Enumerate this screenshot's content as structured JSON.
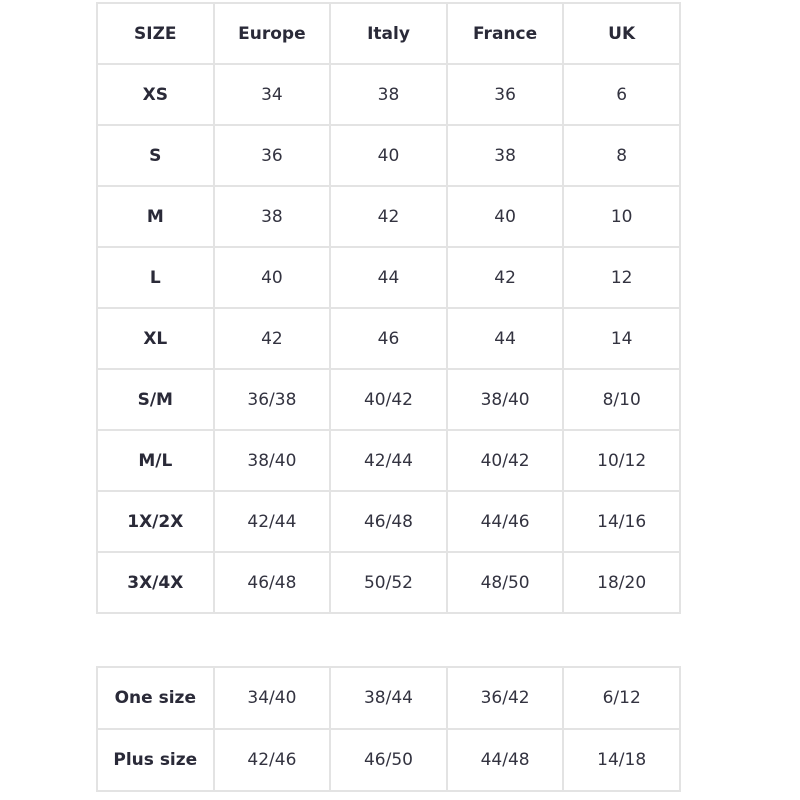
{
  "size_chart": {
    "headers": [
      "SIZE",
      "Europe",
      "Italy",
      "France",
      "UK"
    ],
    "rows": [
      [
        "XS",
        "34",
        "38",
        "36",
        "6"
      ],
      [
        "S",
        "36",
        "40",
        "38",
        "8"
      ],
      [
        "M",
        "38",
        "42",
        "40",
        "10"
      ],
      [
        "L",
        "40",
        "44",
        "42",
        "12"
      ],
      [
        "XL",
        "42",
        "46",
        "44",
        "14"
      ],
      [
        "S/M",
        "36/38",
        "40/42",
        "38/40",
        "8/10"
      ],
      [
        "M/L",
        "38/40",
        "42/44",
        "40/42",
        "10/12"
      ],
      [
        "1X/2X",
        "42/44",
        "46/48",
        "44/46",
        "14/16"
      ],
      [
        "3X/4X",
        "46/48",
        "50/52",
        "48/50",
        "18/20"
      ]
    ]
  },
  "extra_chart": {
    "rows": [
      [
        "One size",
        "34/40",
        "38/44",
        "36/42",
        "6/12"
      ],
      [
        "Plus size",
        "42/46",
        "46/50",
        "44/48",
        "14/18"
      ]
    ]
  }
}
